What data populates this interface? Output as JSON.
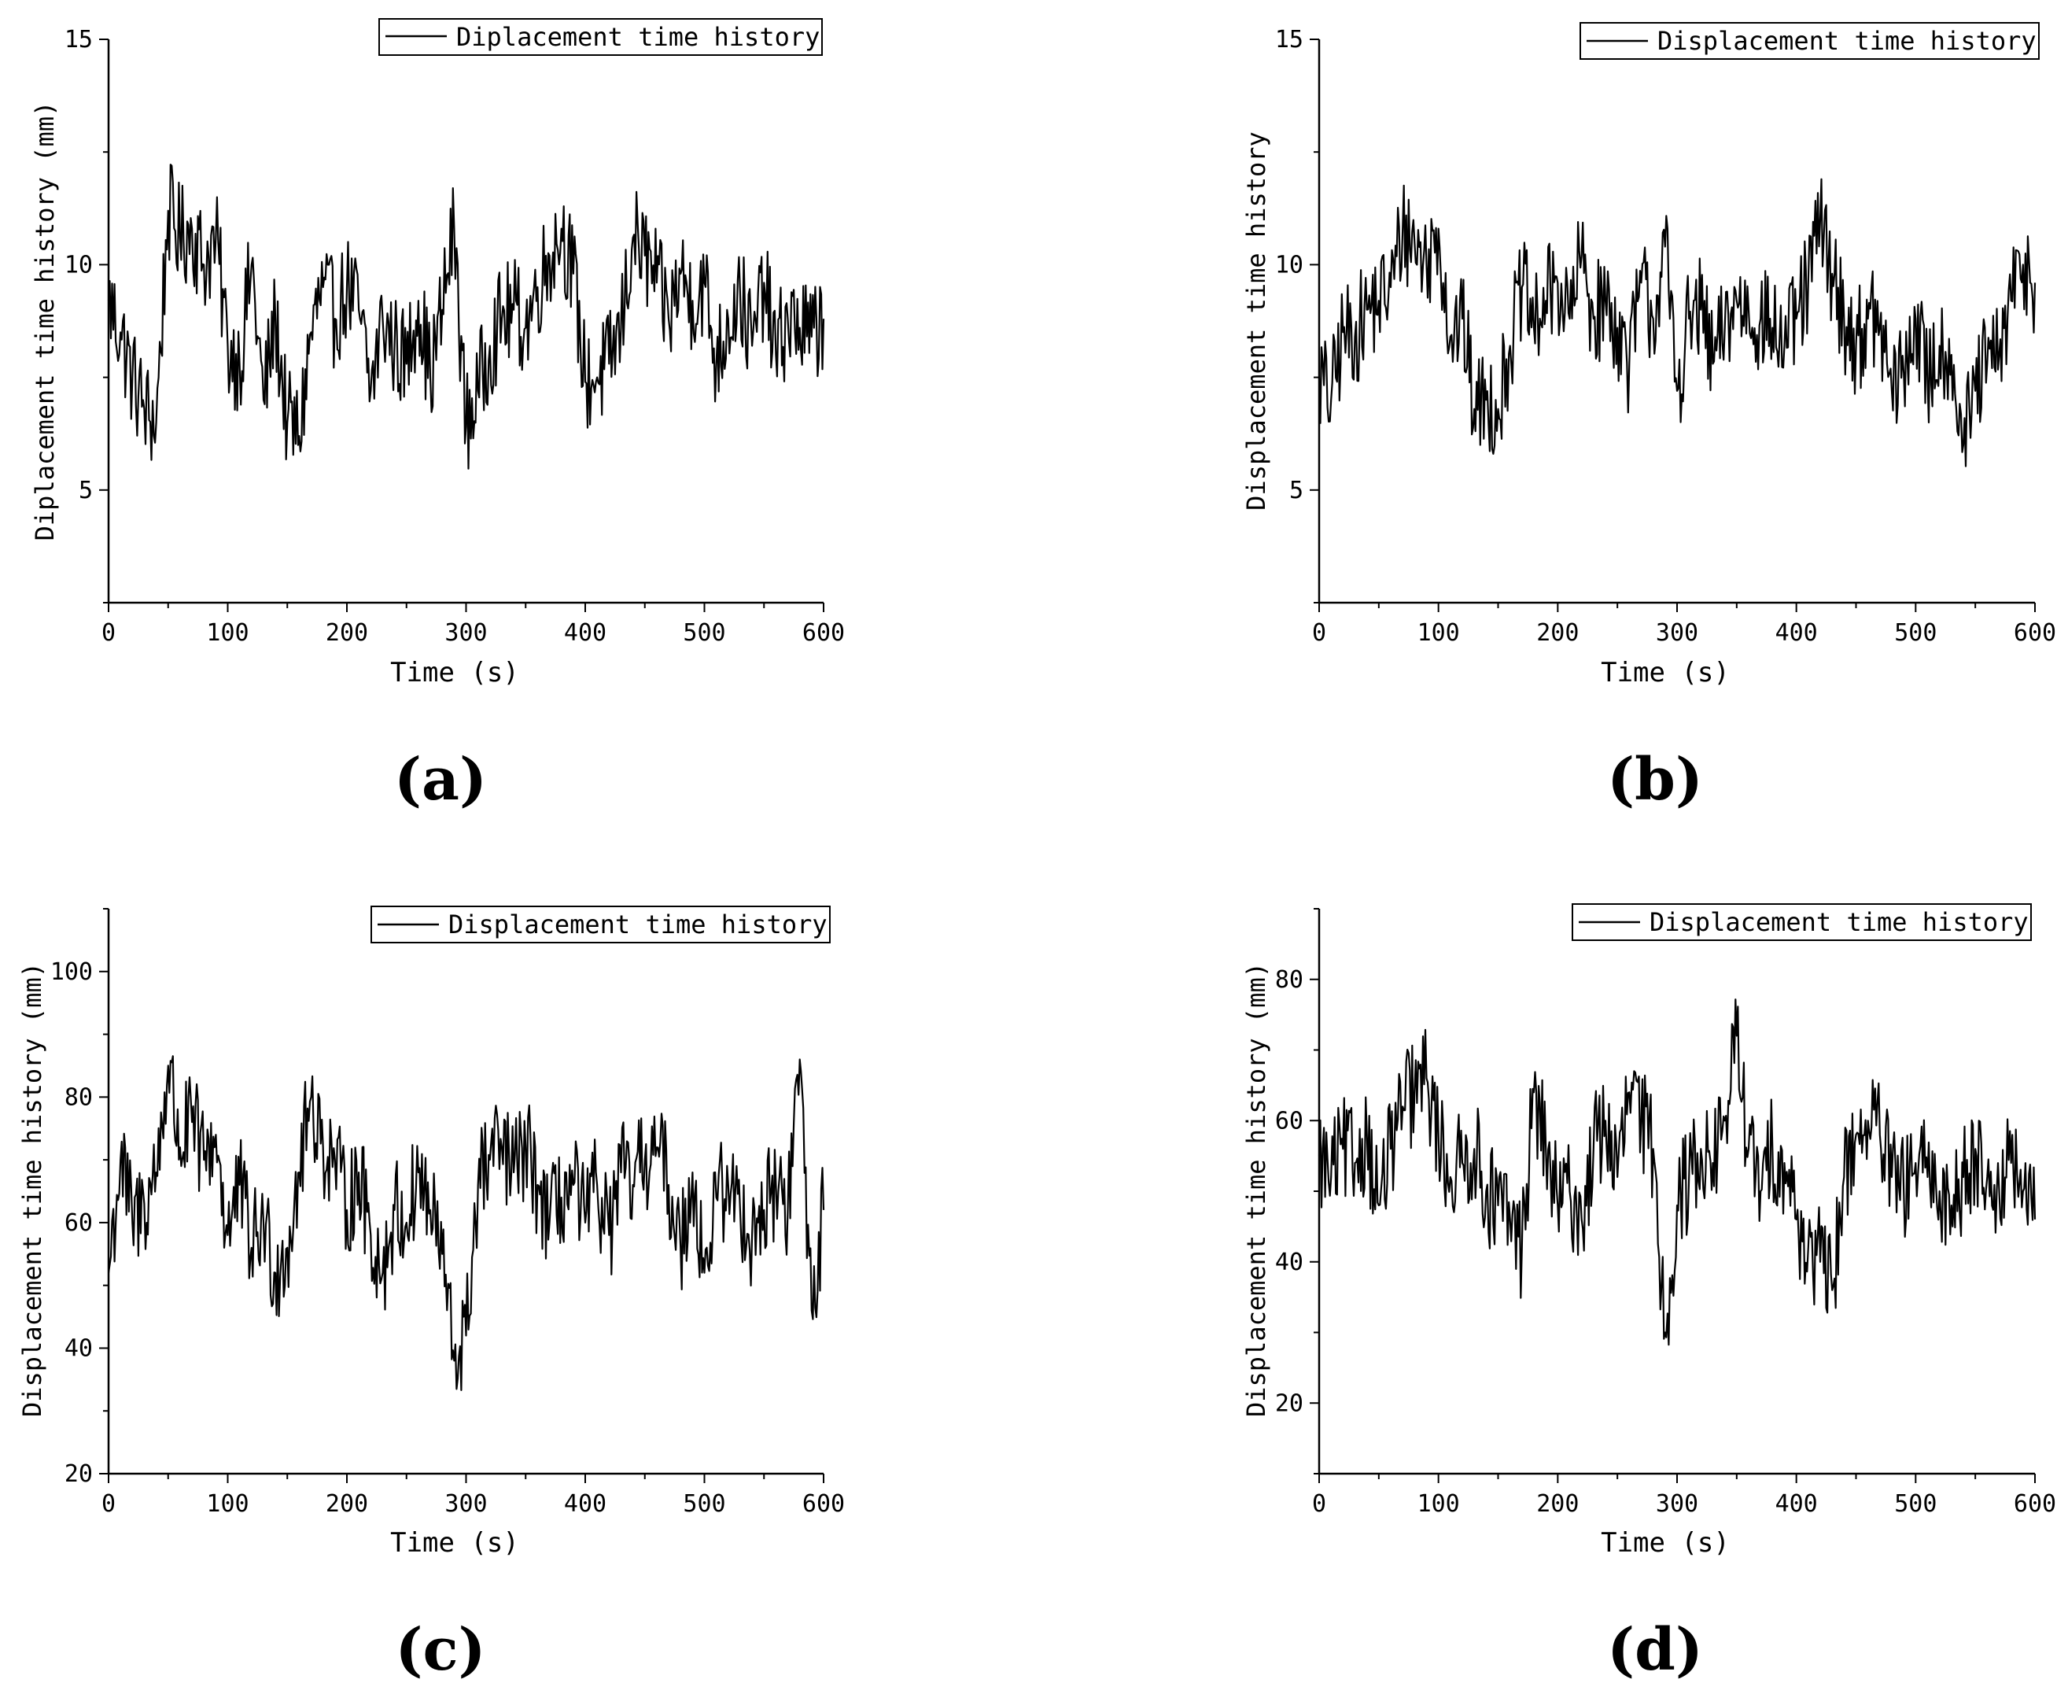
{
  "figure": {
    "charts": [
      {
        "id": "a",
        "panel_label": "(a)",
        "legend": "Diplacement time history",
        "ylabel": "Diplacement time history (mm)",
        "xlabel": "Time (s)"
      },
      {
        "id": "b",
        "panel_label": "(b)",
        "legend": "Displacement time history",
        "ylabel": "Displacement time history",
        "xlabel": "Time (s)"
      },
      {
        "id": "c",
        "panel_label": "(c)",
        "legend": "Displacement time history",
        "ylabel": "Displacement time history (mm)",
        "xlabel": "Time (s)"
      },
      {
        "id": "d",
        "panel_label": "(d)",
        "legend": "Displacement time history",
        "ylabel": "Displacement time history (mm)",
        "xlabel": "Time (s)"
      }
    ]
  },
  "chart_data": [
    {
      "type": "line",
      "panel_label": "(a)",
      "xlabel": "Time (s)",
      "ylabel": "Diplacement time history (mm)",
      "xlim": [
        0,
        600
      ],
      "ylim": [
        2.5,
        15
      ],
      "xticks": [
        0,
        100,
        200,
        300,
        400,
        500,
        600
      ],
      "yticks": [
        5,
        10,
        15
      ],
      "grid": false,
      "legend_position": "top-right",
      "line_color": "#000000",
      "series": [
        {
          "name": "Diplacement time history",
          "x": [
            0,
            10,
            20,
            30,
            40,
            50,
            60,
            70,
            80,
            90,
            100,
            110,
            120,
            130,
            140,
            150,
            160,
            170,
            180,
            190,
            200,
            210,
            220,
            230,
            240,
            250,
            260,
            270,
            280,
            290,
            300,
            310,
            320,
            330,
            340,
            350,
            360,
            370,
            380,
            390,
            400,
            410,
            420,
            430,
            440,
            450,
            460,
            470,
            480,
            490,
            500,
            510,
            520,
            530,
            540,
            550,
            560,
            570,
            580,
            590,
            600
          ],
          "y": [
            9.2,
            8.5,
            7.5,
            6.8,
            6.5,
            11.2,
            10.6,
            10.8,
            10.0,
            10.6,
            8.2,
            7.8,
            10.0,
            7.0,
            8.8,
            6.5,
            6.2,
            8.5,
            9.5,
            8.8,
            9.5,
            9.0,
            7.2,
            8.8,
            8.2,
            7.8,
            9.2,
            7.5,
            9.0,
            10.8,
            6.4,
            7.2,
            8.2,
            8.8,
            9.0,
            8.6,
            9.5,
            10.2,
            10.8,
            9.8,
            7.4,
            7.5,
            7.8,
            8.6,
            10.6,
            10.2,
            9.6,
            8.8,
            9.8,
            9.2,
            9.6,
            7.8,
            8.8,
            9.4,
            8.2,
            9.6,
            8.0,
            8.8,
            8.6,
            8.4,
            8.8
          ]
        }
      ]
    },
    {
      "type": "line",
      "panel_label": "(b)",
      "xlabel": "Time (s)",
      "ylabel": "Displacement time history",
      "xlim": [
        0,
        600
      ],
      "ylim": [
        2.5,
        15
      ],
      "xticks": [
        0,
        100,
        200,
        300,
        400,
        500,
        600
      ],
      "yticks": [
        5,
        10,
        15
      ],
      "grid": false,
      "legend_position": "top-right",
      "line_color": "#000000",
      "series": [
        {
          "name": "Displacement time history",
          "x": [
            0,
            10,
            20,
            30,
            40,
            50,
            60,
            70,
            80,
            90,
            100,
            110,
            120,
            130,
            140,
            150,
            160,
            170,
            180,
            190,
            200,
            210,
            220,
            230,
            240,
            250,
            260,
            270,
            280,
            290,
            300,
            310,
            320,
            330,
            340,
            350,
            360,
            370,
            380,
            390,
            400,
            410,
            420,
            430,
            440,
            450,
            460,
            470,
            480,
            490,
            500,
            510,
            520,
            530,
            540,
            550,
            560,
            570,
            580,
            590,
            600
          ],
          "y": [
            7.5,
            7.0,
            8.5,
            8.4,
            9.0,
            9.2,
            9.5,
            10.8,
            10.5,
            10.0,
            10.8,
            8.4,
            8.8,
            6.8,
            7.0,
            6.8,
            8.2,
            9.5,
            8.6,
            9.2,
            9.6,
            8.8,
            10.2,
            8.8,
            9.2,
            8.6,
            7.8,
            9.6,
            8.8,
            10.4,
            7.2,
            8.8,
            9.0,
            7.8,
            8.6,
            9.2,
            9.0,
            8.8,
            8.6,
            8.2,
            8.8,
            9.6,
            11.0,
            9.8,
            8.8,
            8.2,
            8.8,
            8.6,
            7.2,
            7.6,
            8.8,
            7.4,
            8.2,
            8.0,
            6.0,
            7.2,
            7.8,
            8.0,
            9.2,
            10.0,
            9.6
          ]
        }
      ]
    },
    {
      "type": "line",
      "panel_label": "(c)",
      "xlabel": "Time (s)",
      "ylabel": "Displacement time history (mm)",
      "xlim": [
        0,
        600
      ],
      "ylim": [
        20,
        110
      ],
      "xticks": [
        0,
        100,
        200,
        300,
        400,
        500,
        600
      ],
      "yticks": [
        20,
        40,
        60,
        80,
        100
      ],
      "grid": false,
      "legend_position": "top-right",
      "line_color": "#000000",
      "series": [
        {
          "name": "Displacement time history",
          "x": [
            0,
            10,
            20,
            30,
            40,
            50,
            60,
            70,
            80,
            90,
            100,
            110,
            120,
            130,
            140,
            150,
            160,
            170,
            180,
            190,
            200,
            210,
            220,
            230,
            240,
            250,
            260,
            270,
            280,
            290,
            300,
            310,
            320,
            330,
            340,
            350,
            360,
            370,
            380,
            390,
            400,
            410,
            420,
            430,
            440,
            450,
            460,
            470,
            480,
            490,
            500,
            510,
            520,
            530,
            540,
            550,
            560,
            570,
            580,
            590,
            600
          ],
          "y": [
            52,
            70,
            60,
            63,
            68,
            85,
            72,
            76,
            70,
            74,
            58,
            66,
            56,
            60,
            52,
            56,
            68,
            80,
            72,
            70,
            62,
            68,
            58,
            52,
            62,
            60,
            68,
            62,
            55,
            38,
            42,
            66,
            70,
            72,
            68,
            72,
            66,
            60,
            64,
            66,
            60,
            66,
            58,
            68,
            66,
            70,
            72,
            66,
            56,
            68,
            52,
            64,
            66,
            62,
            58,
            62,
            66,
            62,
            86,
            46,
            62
          ]
        }
      ]
    },
    {
      "type": "line",
      "panel_label": "(d)",
      "xlabel": "Time (s)",
      "ylabel": "Displacement time history (mm)",
      "xlim": [
        0,
        600
      ],
      "ylim": [
        10,
        90
      ],
      "xticks": [
        0,
        100,
        200,
        300,
        400,
        500,
        600
      ],
      "yticks": [
        20,
        40,
        60,
        80
      ],
      "grid": false,
      "legend_position": "top-right",
      "line_color": "#000000",
      "series": [
        {
          "name": "Displacement time history",
          "x": [
            0,
            10,
            20,
            30,
            40,
            50,
            60,
            70,
            80,
            90,
            100,
            110,
            120,
            130,
            140,
            150,
            160,
            170,
            180,
            190,
            200,
            210,
            220,
            230,
            240,
            250,
            260,
            270,
            280,
            290,
            300,
            310,
            320,
            330,
            340,
            350,
            360,
            370,
            380,
            390,
            400,
            410,
            420,
            430,
            440,
            450,
            460,
            470,
            480,
            490,
            500,
            510,
            520,
            530,
            540,
            550,
            560,
            570,
            580,
            590,
            600
          ],
          "y": [
            55,
            52,
            56,
            54,
            58,
            48,
            56,
            62,
            64,
            66,
            58,
            52,
            54,
            56,
            50,
            48,
            46,
            42,
            64,
            56,
            48,
            50,
            46,
            56,
            60,
            52,
            64,
            60,
            56,
            30,
            48,
            52,
            56,
            54,
            60,
            72,
            56,
            50,
            56,
            54,
            46,
            42,
            40,
            36,
            52,
            58,
            60,
            58,
            52,
            50,
            54,
            52,
            50,
            48,
            52,
            56,
            52,
            50,
            54,
            50,
            46
          ]
        }
      ]
    }
  ]
}
